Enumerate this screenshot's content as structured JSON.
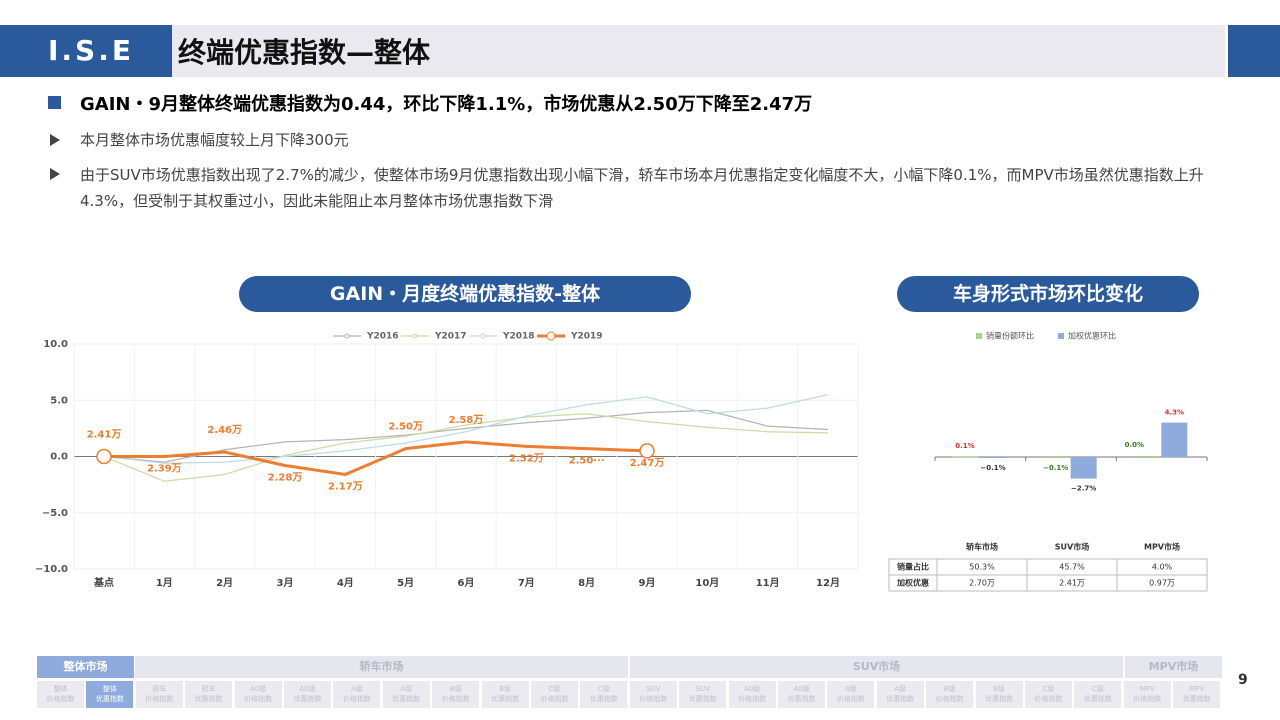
{
  "header": {
    "logo": "I.S.E",
    "title": "终端优惠指数—整体"
  },
  "headline": "GAIN・9月整体终端优惠指数为0.44，环比下降1.1%，市场优惠从2.50万下降至2.47万",
  "bullets": [
    "本月整体市场优惠幅度较上月下降300元",
    "由于SUV市场优惠指数出现了2.7%的减少，使整体市场9月优惠指数出现小幅下滑，轿车市场本月优惠指定变化幅度不大，小幅下降0.1%，而MPV市场虽然优惠指数上升4.3%，但受制于其权重过小，因此未能阻止本月整体市场优惠指数下滑"
  ],
  "chart_data": [
    {
      "type": "line",
      "title": "GAIN・月度终端优惠指数-整体",
      "categories": [
        "基点",
        "1月",
        "2月",
        "3月",
        "4月",
        "5月",
        "6月",
        "7月",
        "8月",
        "9月",
        "10月",
        "11月",
        "12月"
      ],
      "series": [
        {
          "name": "Y2016",
          "color": "#b4b4b4",
          "values": [
            0,
            -0.5,
            0.6,
            1.3,
            1.5,
            1.9,
            2.5,
            3.0,
            3.4,
            3.9,
            4.1,
            2.7,
            2.4
          ]
        },
        {
          "name": "Y2017",
          "color": "#c9dca4",
          "values": [
            0,
            -2.2,
            -1.6,
            0.1,
            1.2,
            1.8,
            2.8,
            3.5,
            3.8,
            3.1,
            2.6,
            2.2,
            2.1
          ]
        },
        {
          "name": "Y2018",
          "color": "#bfd9ee",
          "values": [
            0,
            -0.6,
            -0.5,
            0.0,
            0.5,
            1.2,
            2.2,
            3.6,
            4.6,
            5.3,
            3.8,
            4.3,
            5.5
          ]
        },
        {
          "name": "Y2019",
          "color": "#ed7d31",
          "values": [
            0,
            0,
            0.4,
            -0.8,
            -1.6,
            0.7,
            1.3,
            0.9,
            0.7,
            0.5,
            null,
            null,
            null
          ],
          "annotations": [
            "2.41万",
            "2.39万",
            "2.46万",
            "2.28万",
            "2.17万",
            "2.50万",
            "2.58万",
            "2.52万",
            "2.50···",
            "2.47万",
            null,
            null,
            null
          ]
        }
      ],
      "ylim": [
        -10,
        10
      ],
      "yticks": [
        {
          "value": 10,
          "label": "10.0"
        },
        {
          "value": 5,
          "label": "5.0"
        },
        {
          "value": 0,
          "label": "0.0"
        },
        {
          "value": -5,
          "label": "−5.0"
        },
        {
          "value": -10,
          "label": "−10.0"
        }
      ],
      "grid": true,
      "legend": "top"
    },
    {
      "type": "bar",
      "title": "车身形式市场环比变化",
      "categories": [
        "轿车市场",
        "SUV市场",
        "MPV市场"
      ],
      "series": [
        {
          "name": "销量份额环比",
          "color": "#a9d18e",
          "values": [
            0.1,
            -0.1,
            0.0
          ],
          "value_labels": [
            "0.1%",
            "−0.1%",
            "0.0%"
          ]
        },
        {
          "name": "加权优惠环比",
          "color": "#8faadc",
          "values": [
            -0.1,
            -2.7,
            4.3
          ],
          "value_labels": [
            "−0.1%",
            "−2.7%",
            "4.3%"
          ]
        }
      ],
      "ylim": [
        -4,
        5
      ],
      "legend": "top"
    }
  ],
  "table": {
    "header": [
      "轿车市场",
      "SUV市场",
      "MPV市场"
    ],
    "rows": [
      [
        "销量占比",
        "50.3%",
        "45.7%",
        "4.0%"
      ],
      [
        "加权优惠",
        "2.70万",
        "2.41万",
        "0.97万"
      ]
    ]
  },
  "nav": {
    "groups": [
      "整体市场",
      "轿车市场",
      "SUV市场",
      "MPV市场"
    ],
    "tabs": [
      [
        "整体",
        "价格指数"
      ],
      [
        "整体",
        "优惠指数"
      ],
      [
        "轿车",
        "价格指数"
      ],
      [
        "轿车",
        "优惠指数"
      ],
      [
        "A0级",
        "价格指数"
      ],
      [
        "A0级",
        "优惠指数"
      ],
      [
        "A级",
        "价格指数"
      ],
      [
        "A级",
        "优惠指数"
      ],
      [
        "B级",
        "价格指数"
      ],
      [
        "B级",
        "优惠指数"
      ],
      [
        "C级",
        "价格指数"
      ],
      [
        "C级",
        "优惠指数"
      ],
      [
        "SUV",
        "价格指数"
      ],
      [
        "SUV",
        "优惠指数"
      ],
      [
        "A0级",
        "价格指数"
      ],
      [
        "A0级",
        "优惠指数"
      ],
      [
        "A级",
        "价格指数"
      ],
      [
        "A级",
        "优惠指数"
      ],
      [
        "B级",
        "价格指数"
      ],
      [
        "B级",
        "优惠指数"
      ],
      [
        "C级",
        "价格指数"
      ],
      [
        "C级",
        "优惠指数"
      ],
      [
        "MPV",
        "价格指数"
      ],
      [
        "MPV",
        "优惠指数"
      ]
    ]
  },
  "page": "9"
}
